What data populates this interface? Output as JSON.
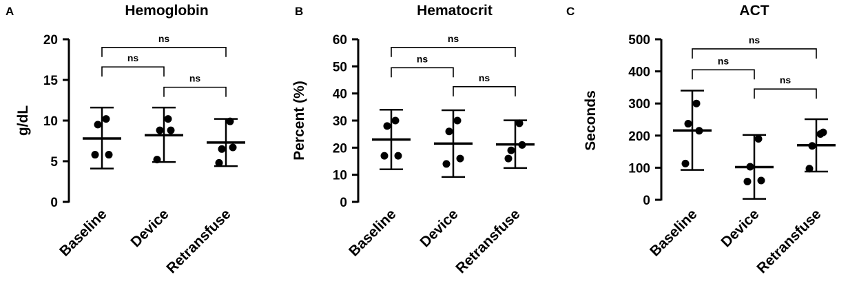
{
  "chart_data": [
    {
      "type": "scatter",
      "panel": "A",
      "title": "Hemoglobin",
      "xlabel": "",
      "ylabel": "g/dL",
      "ylim": [
        0,
        20
      ],
      "yticks": [
        0,
        5,
        10,
        15,
        20
      ],
      "categories": [
        "Baseline",
        "Device",
        "Retransfuse"
      ],
      "points": [
        [
          5.8,
          9.5,
          10.2,
          5.8
        ],
        [
          5.2,
          8.8,
          10.2,
          8.8
        ],
        [
          4.8,
          6.5,
          9.9,
          6.7
        ]
      ],
      "mean": [
        7.8,
        8.2,
        7.3
      ],
      "sd_low": [
        4.1,
        4.9,
        4.4
      ],
      "sd_high": [
        11.6,
        11.6,
        10.2
      ],
      "comparisons": [
        {
          "from": 0,
          "to": 1,
          "y": 16.6,
          "label": "ns"
        },
        {
          "from": 1,
          "to": 2,
          "y": 14.1,
          "label": "ns"
        },
        {
          "from": 0,
          "to": 2,
          "y": 19.0,
          "label": "ns"
        }
      ]
    },
    {
      "type": "scatter",
      "panel": "B",
      "title": "Hematocrit",
      "xlabel": "",
      "ylabel": "Percent (%)",
      "ylim": [
        0,
        60
      ],
      "yticks": [
        0,
        10,
        20,
        30,
        40,
        50,
        60
      ],
      "categories": [
        "Baseline",
        "Device",
        "Retransfuse"
      ],
      "points": [
        [
          17,
          28,
          30,
          17
        ],
        [
          14,
          26,
          30,
          16
        ],
        [
          16,
          19,
          29,
          21
        ]
      ],
      "mean": [
        23,
        21.5,
        21.2
      ],
      "sd_low": [
        12,
        9.2,
        12.5
      ],
      "sd_high": [
        34,
        33.8,
        30.1
      ],
      "comparisons": [
        {
          "from": 0,
          "to": 1,
          "y": 49.5,
          "label": "ns"
        },
        {
          "from": 1,
          "to": 2,
          "y": 42.5,
          "label": "ns"
        },
        {
          "from": 0,
          "to": 2,
          "y": 57.0,
          "label": "ns"
        }
      ]
    },
    {
      "type": "scatter",
      "panel": "C",
      "title": "ACT",
      "xlabel": "",
      "ylabel": "Seconds",
      "ylim": [
        0,
        500
      ],
      "yticks": [
        0,
        100,
        200,
        300,
        400,
        500
      ],
      "categories": [
        "Baseline",
        "Device",
        "Retransfuse"
      ],
      "points": [
        [
          113,
          237,
          300,
          215
        ],
        [
          57,
          103,
          190,
          60
        ],
        [
          97,
          168,
          205,
          210
        ]
      ],
      "mean": [
        216,
        102,
        170
      ],
      "sd_low": [
        93,
        3,
        88
      ],
      "sd_high": [
        340,
        202,
        251
      ],
      "comparisons": [
        {
          "from": 0,
          "to": 1,
          "y": 405,
          "label": "ns"
        },
        {
          "from": 1,
          "to": 2,
          "y": 345,
          "label": "ns"
        },
        {
          "from": 0,
          "to": 2,
          "y": 470,
          "label": "ns"
        }
      ]
    }
  ]
}
